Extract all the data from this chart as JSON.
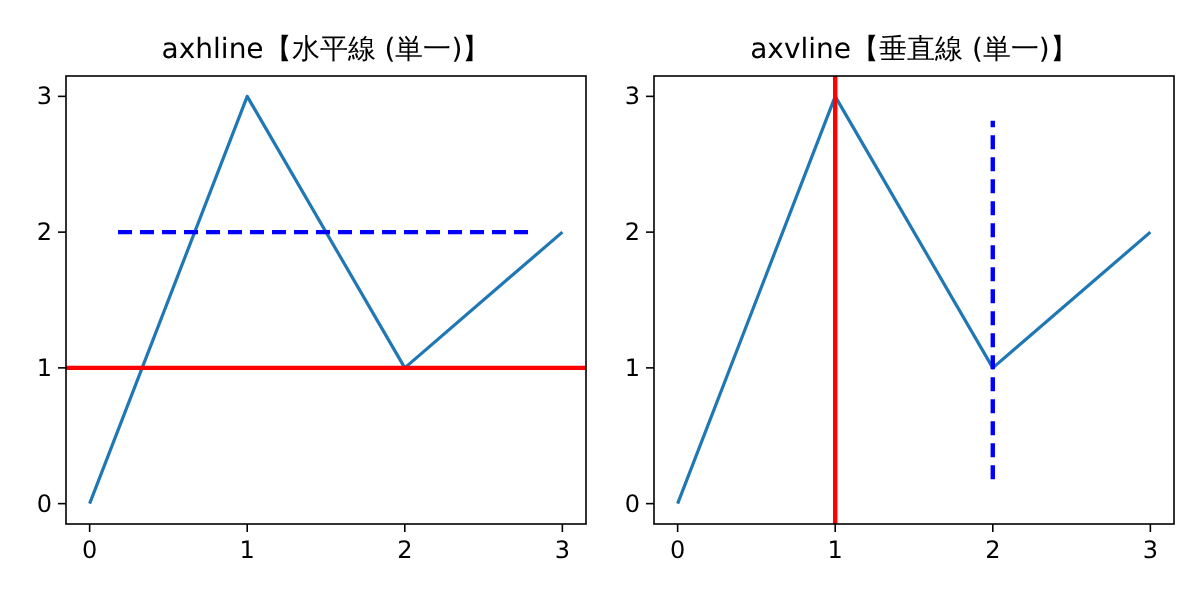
{
  "chart_data": [
    {
      "type": "line",
      "title": "axhline【水平線 (単一)】",
      "xlim": [
        -0.15,
        3.15
      ],
      "ylim": [
        -0.15,
        3.15
      ],
      "xticks": [
        0,
        1,
        2,
        3
      ],
      "yticks": [
        0,
        1,
        2,
        3
      ],
      "series": [
        {
          "color": "#1f77b4",
          "x": [
            0,
            1,
            2,
            3
          ],
          "values": [
            0,
            3,
            1,
            2
          ]
        },
        {
          "color": "#0000ff",
          "line_style": "dashed",
          "x": [
            0.18,
            2.82
          ],
          "values": [
            2,
            2
          ]
        }
      ],
      "ref_lines": [
        {
          "axis": "y",
          "value": 1,
          "color": "#ff0000"
        }
      ]
    },
    {
      "type": "line",
      "title": "axvline【垂直線 (単一)】",
      "xlim": [
        -0.15,
        3.15
      ],
      "ylim": [
        -0.15,
        3.15
      ],
      "xticks": [
        0,
        1,
        2,
        3
      ],
      "yticks": [
        0,
        1,
        2,
        3
      ],
      "series": [
        {
          "color": "#1f77b4",
          "x": [
            0,
            1,
            2,
            3
          ],
          "values": [
            0,
            3,
            1,
            2
          ]
        },
        {
          "color": "#0000ff",
          "line_style": "dashed",
          "x": [
            2,
            2
          ],
          "values": [
            0.18,
            2.82
          ]
        }
      ],
      "ref_lines": [
        {
          "axis": "x",
          "value": 1,
          "color": "#ff0000"
        }
      ]
    }
  ]
}
